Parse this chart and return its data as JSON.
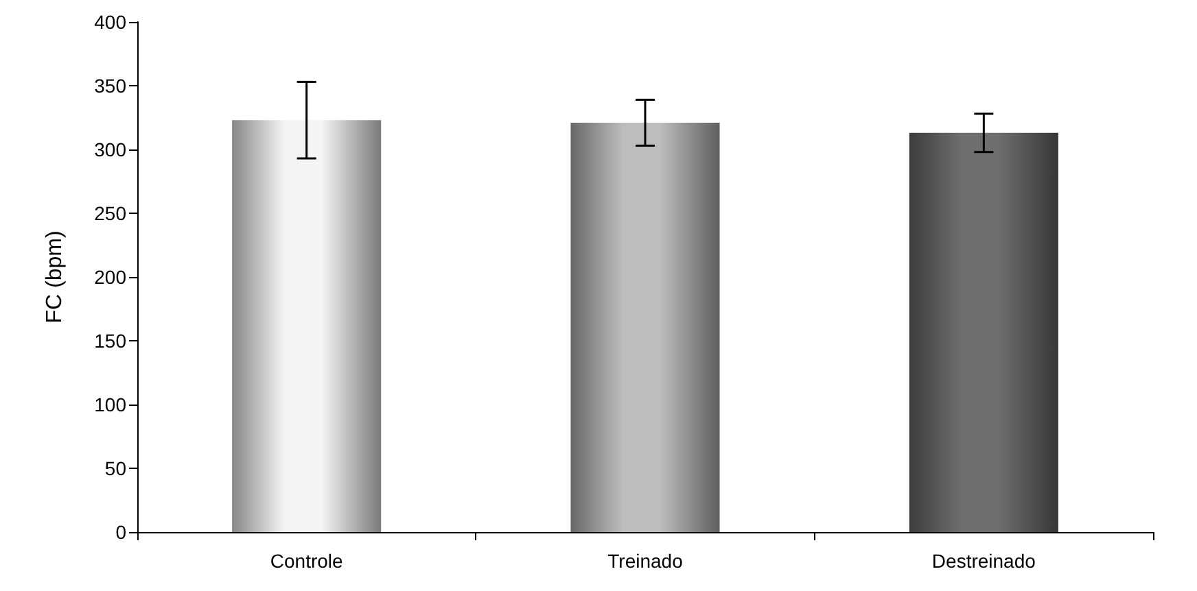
{
  "chart_data": {
    "type": "bar",
    "ylabel": "FC (bpm)",
    "categories": [
      "Controle",
      "Treinado",
      "Destreinado"
    ],
    "values": [
      323,
      321,
      313
    ],
    "errors": [
      30,
      18,
      15
    ],
    "colors": [
      "#f4f4f4",
      "#bdbdbd",
      "#6e6e6e"
    ],
    "ylim": [
      0,
      400
    ],
    "yticks": [
      0,
      50,
      100,
      150,
      200,
      250,
      300,
      350,
      400
    ],
    "grid": false
  }
}
